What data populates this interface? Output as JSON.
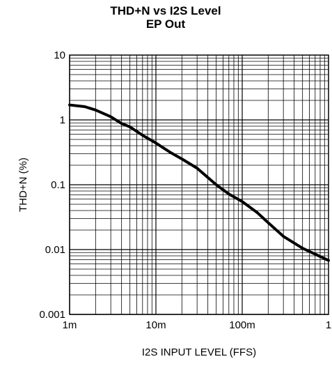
{
  "chart_data": {
    "type": "line",
    "title": "THD+N vs I2S Level",
    "subtitle": "EP Out",
    "xlabel": "I2S INPUT LEVEL (FFS)",
    "ylabel": "THD+N (%)",
    "x_scale": "log",
    "y_scale": "log",
    "xlim": [
      0.001,
      1
    ],
    "ylim": [
      0.001,
      10
    ],
    "grid": true,
    "x_tick_labels": [
      "1m",
      "10m",
      "100m",
      "1"
    ],
    "y_tick_labels": [
      "0.001",
      "0.01",
      "0.1",
      "1",
      "10"
    ],
    "series": [
      {
        "color": "#000000",
        "points": [
          [
            0.001,
            1.7
          ],
          [
            0.0015,
            1.6
          ],
          [
            0.002,
            1.42
          ],
          [
            0.003,
            1.12
          ],
          [
            0.004,
            0.88
          ],
          [
            0.005,
            0.78
          ],
          [
            0.007,
            0.58
          ],
          [
            0.01,
            0.44
          ],
          [
            0.015,
            0.31
          ],
          [
            0.02,
            0.25
          ],
          [
            0.03,
            0.18
          ],
          [
            0.05,
            0.1
          ],
          [
            0.07,
            0.072
          ],
          [
            0.1,
            0.055
          ],
          [
            0.15,
            0.037
          ],
          [
            0.2,
            0.026
          ],
          [
            0.3,
            0.016
          ],
          [
            0.5,
            0.0105
          ],
          [
            0.7,
            0.0085
          ],
          [
            1.0,
            0.0068
          ]
        ]
      }
    ]
  }
}
